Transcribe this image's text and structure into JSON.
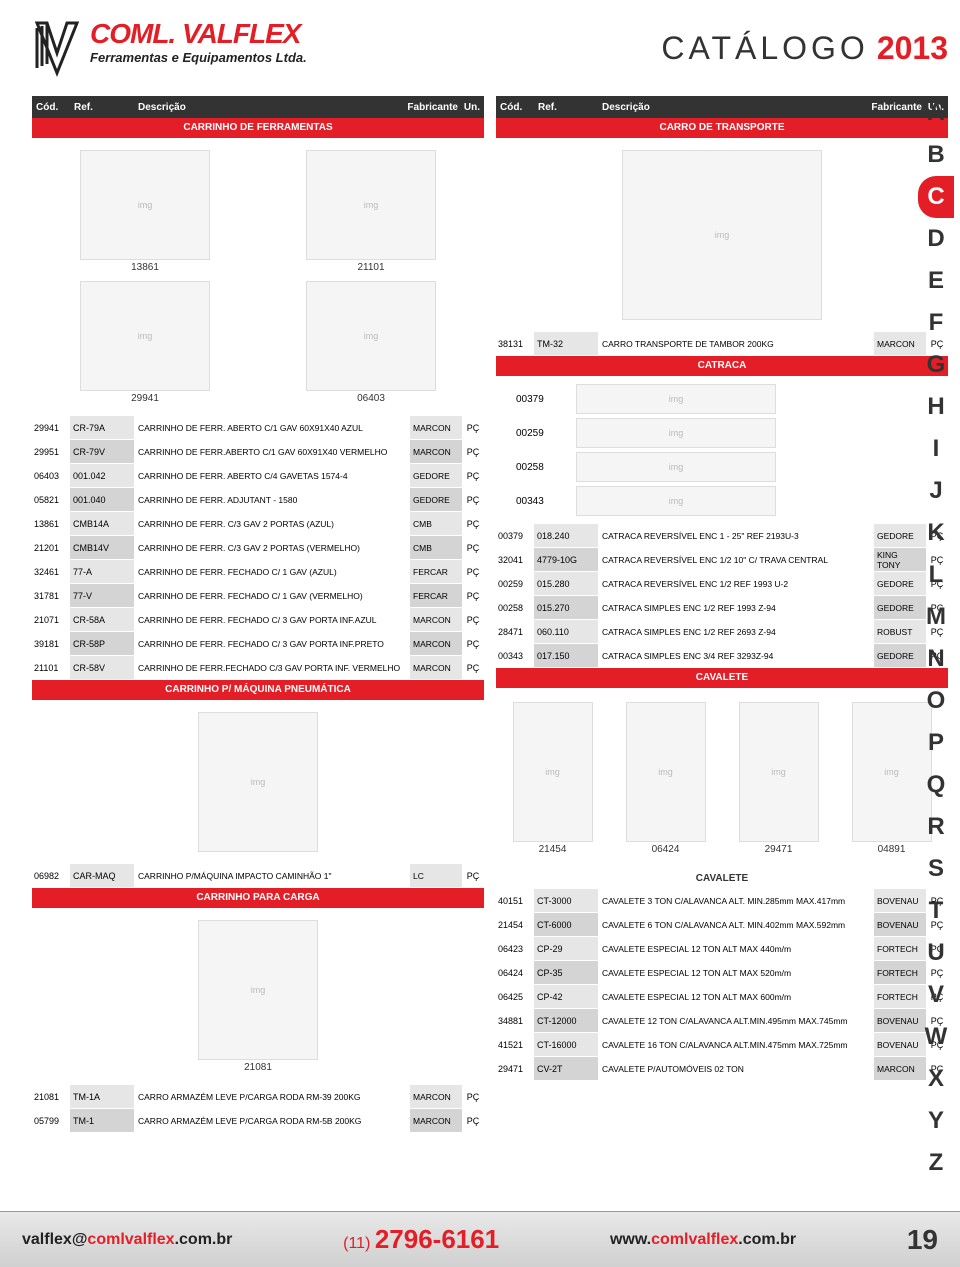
{
  "logo": {
    "title": "COML. VALFLEX",
    "subtitle": "Ferramentas e Equipamentos Ltda."
  },
  "catalog": {
    "word": "CATÁLOGO",
    "year": "2013"
  },
  "headers": {
    "cod": "Cód.",
    "ref": "Ref.",
    "desc": "Descrição",
    "fab": "Fabricante",
    "un": "Un."
  },
  "alpha": [
    "A",
    "B",
    "C",
    "D",
    "E",
    "F",
    "G",
    "H",
    "I",
    "J",
    "K",
    "L",
    "M",
    "N",
    "O",
    "P",
    "Q",
    "R",
    "S",
    "T",
    "U",
    "V",
    "W",
    "X",
    "Y",
    "Z"
  ],
  "alpha_active": "C",
  "left": {
    "sec1": {
      "title": "CARRINHO DE FERRAMENTAS",
      "imgs": [
        {
          "cap": "13861"
        },
        {
          "cap": "21101"
        },
        {
          "cap": "29941"
        },
        {
          "cap": "06403"
        }
      ],
      "rows": [
        {
          "cod": "29941",
          "ref": "CR-79A",
          "desc": "CARRINHO DE FERR. ABERTO C/1 GAV 60X91X40 AZUL",
          "fab": "MARCON",
          "un": "PÇ"
        },
        {
          "cod": "29951",
          "ref": "CR-79V",
          "desc": "CARRINHO DE FERR.ABERTO C/1 GAV 60X91X40 VERMELHO",
          "fab": "MARCON",
          "un": "PÇ"
        },
        {
          "cod": "06403",
          "ref": "001.042",
          "desc": "CARRINHO DE FERR. ABERTO C/4 GAVETAS 1574-4",
          "fab": "GEDORE",
          "un": "PÇ"
        },
        {
          "cod": "05821",
          "ref": "001.040",
          "desc": "CARRINHO DE FERR. ADJUTANT - 1580",
          "fab": "GEDORE",
          "un": "PÇ"
        },
        {
          "cod": "13861",
          "ref": "CMB14A",
          "desc": "CARRINHO DE FERR. C/3 GAV 2 PORTAS (AZUL)",
          "fab": "CMB",
          "un": "PÇ"
        },
        {
          "cod": "21201",
          "ref": "CMB14V",
          "desc": "CARRINHO DE FERR. C/3 GAV 2 PORTAS (VERMELHO)",
          "fab": "CMB",
          "un": "PÇ"
        },
        {
          "cod": "32461",
          "ref": "77-A",
          "desc": "CARRINHO DE FERR. FECHADO C/ 1 GAV (AZUL)",
          "fab": "FERCAR",
          "un": "PÇ"
        },
        {
          "cod": "31781",
          "ref": "77-V",
          "desc": "CARRINHO DE FERR. FECHADO C/ 1 GAV (VERMELHO)",
          "fab": "FERCAR",
          "un": "PÇ"
        },
        {
          "cod": "21071",
          "ref": "CR-58A",
          "desc": "CARRINHO DE FERR. FECHADO C/ 3 GAV PORTA INF.AZUL",
          "fab": "MARCON",
          "un": "PÇ"
        },
        {
          "cod": "39181",
          "ref": "CR-58P",
          "desc": "CARRINHO DE FERR. FECHADO C/ 3 GAV PORTA INF.PRETO",
          "fab": "MARCON",
          "un": "PÇ"
        },
        {
          "cod": "21101",
          "ref": "CR-58V",
          "desc": "CARRINHO DE FERR.FECHADO C/3 GAV PORTA INF. VERMELHO",
          "fab": "MARCON",
          "un": "PÇ"
        }
      ]
    },
    "sec2": {
      "title": "CARRINHO P/ MÁQUINA PNEUMÁTICA",
      "imgs": [
        {
          "cap": ""
        }
      ],
      "rows": [
        {
          "cod": "06982",
          "ref": "CAR-MAQ",
          "desc": "CARRINHO P/MÁQUINA IMPACTO CAMINHÃO 1\"",
          "fab": "LC",
          "un": "PÇ"
        }
      ]
    },
    "sec3": {
      "title": "CARRINHO PARA CARGA",
      "imgs": [
        {
          "cap": "21081"
        }
      ],
      "rows": [
        {
          "cod": "21081",
          "ref": "TM-1A",
          "desc": "CARRO ARMAZÉM LEVE P/CARGA RODA RM-39 200KG",
          "fab": "MARCON",
          "un": "PÇ"
        },
        {
          "cod": "05799",
          "ref": "TM-1",
          "desc": "CARRO ARMAZÉM LEVE P/CARGA RODA RM-5B 200KG",
          "fab": "MARCON",
          "un": "PÇ"
        }
      ]
    }
  },
  "right": {
    "sec1": {
      "title": "CARRO DE TRANSPORTE",
      "imgs": [
        {
          "cap": ""
        }
      ],
      "rows": [
        {
          "cod": "38131",
          "ref": "TM-32",
          "desc": "CARRO TRANSPORTE DE TAMBOR 200KG",
          "fab": "MARCON",
          "un": "PÇ"
        }
      ]
    },
    "sec2": {
      "title": "CATRACA",
      "imgs": [
        {
          "cap": "00379"
        },
        {
          "cap": "00259"
        },
        {
          "cap": "00258"
        },
        {
          "cap": "00343"
        }
      ],
      "rows": [
        {
          "cod": "00379",
          "ref": "018.240",
          "desc": "CATRACA REVERSÍVEL ENC 1 - 25\" REF 2193U-3",
          "fab": "GEDORE",
          "un": "PÇ"
        },
        {
          "cod": "32041",
          "ref": "4779-10G",
          "desc": "CATRACA REVERSÍVEL ENC 1/2 10\" C/ TRAVA CENTRAL",
          "fab": "KING TONY",
          "un": "PÇ"
        },
        {
          "cod": "00259",
          "ref": "015.280",
          "desc": "CATRACA REVERSÍVEL ENC 1/2 REF 1993 U-2",
          "fab": "GEDORE",
          "un": "PÇ"
        },
        {
          "cod": "00258",
          "ref": "015.270",
          "desc": "CATRACA SIMPLES ENC 1/2 REF 1993 Z-94",
          "fab": "GEDORE",
          "un": "PÇ"
        },
        {
          "cod": "28471",
          "ref": "060.110",
          "desc": "CATRACA SIMPLES ENC 1/2 REF 2693 Z-94",
          "fab": "ROBUST",
          "un": "PÇ"
        },
        {
          "cod": "00343",
          "ref": "017.150",
          "desc": "CATRACA SIMPLES ENC 3/4 REF 3293Z-94",
          "fab": "GEDORE",
          "un": "PÇ"
        }
      ]
    },
    "sec3": {
      "title": "CAVALETE",
      "subtitle": "CAVALETE",
      "imgs": [
        {
          "cap": "21454"
        },
        {
          "cap": "06424"
        },
        {
          "cap": "29471"
        },
        {
          "cap": "04891"
        }
      ],
      "rows": [
        {
          "cod": "40151",
          "ref": "CT-3000",
          "desc": "CAVALETE 3 TON C/ALAVANCA ALT. MIN.285mm MAX.417mm",
          "fab": "BOVENAU",
          "un": "PÇ"
        },
        {
          "cod": "21454",
          "ref": "CT-6000",
          "desc": "CAVALETE 6 TON C/ALAVANCA ALT. MIN.402mm MAX.592mm",
          "fab": "BOVENAU",
          "un": "PÇ"
        },
        {
          "cod": "06423",
          "ref": "CP-29",
          "desc": "CAVALETE ESPECIAL 12 TON ALT MAX 440m/m",
          "fab": "FORTECH",
          "un": "PÇ"
        },
        {
          "cod": "06424",
          "ref": "CP-35",
          "desc": "CAVALETE ESPECIAL 12 TON ALT MAX 520m/m",
          "fab": "FORTECH",
          "un": "PÇ"
        },
        {
          "cod": "06425",
          "ref": "CP-42",
          "desc": "CAVALETE ESPECIAL 12 TON ALT MAX 600m/m",
          "fab": "FORTECH",
          "un": "PÇ"
        },
        {
          "cod": "34881",
          "ref": "CT-12000",
          "desc": "CAVALETE 12 TON C/ALAVANCA ALT.MIN.495mm MAX.745mm",
          "fab": "BOVENAU",
          "un": "PÇ"
        },
        {
          "cod": "41521",
          "ref": "CT-16000",
          "desc": "CAVALETE 16 TON C/ALAVANCA ALT.MIN.475mm MAX.725mm",
          "fab": "BOVENAU",
          "un": "PÇ"
        },
        {
          "cod": "29471",
          "ref": "CV-2T",
          "desc": "CAVALETE P/AUTOMÓVEIS 02 TON",
          "fab": "MARCON",
          "un": "PÇ"
        }
      ]
    }
  },
  "footer": {
    "email_pre": "valflex@",
    "email_mid": "comlvalflex",
    "email_suf": ".com.br",
    "phone_pre": "(11) ",
    "phone": "2796-6161",
    "url_pre": "www.",
    "url_mid": "comlvalflex",
    "url_suf": ".com.br",
    "page": "19"
  }
}
